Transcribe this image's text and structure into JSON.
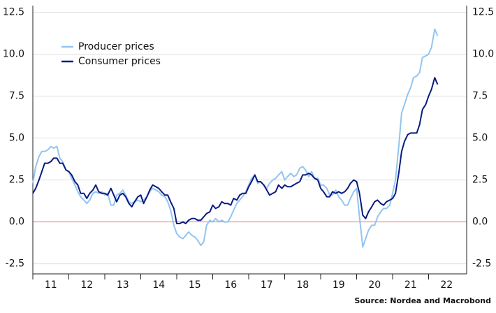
{
  "chart_data": {
    "type": "line",
    "source": "Source: Nordea and Macrobond",
    "x": [
      2011.0,
      2011.08,
      2011.17,
      2011.25,
      2011.33,
      2011.42,
      2011.5,
      2011.58,
      2011.67,
      2011.75,
      2011.83,
      2011.92,
      2012.0,
      2012.08,
      2012.17,
      2012.25,
      2012.33,
      2012.42,
      2012.5,
      2012.58,
      2012.67,
      2012.75,
      2012.83,
      2012.92,
      2013.0,
      2013.08,
      2013.17,
      2013.25,
      2013.33,
      2013.42,
      2013.5,
      2013.58,
      2013.67,
      2013.75,
      2013.83,
      2013.92,
      2014.0,
      2014.08,
      2014.17,
      2014.25,
      2014.33,
      2014.42,
      2014.5,
      2014.58,
      2014.67,
      2014.75,
      2014.83,
      2014.92,
      2015.0,
      2015.08,
      2015.17,
      2015.25,
      2015.33,
      2015.42,
      2015.5,
      2015.58,
      2015.67,
      2015.75,
      2015.83,
      2015.92,
      2016.0,
      2016.08,
      2016.17,
      2016.25,
      2016.33,
      2016.42,
      2016.5,
      2016.58,
      2016.67,
      2016.75,
      2016.83,
      2016.92,
      2017.0,
      2017.08,
      2017.17,
      2017.25,
      2017.33,
      2017.42,
      2017.5,
      2017.58,
      2017.67,
      2017.75,
      2017.83,
      2017.92,
      2018.0,
      2018.08,
      2018.17,
      2018.25,
      2018.33,
      2018.42,
      2018.5,
      2018.58,
      2018.67,
      2018.75,
      2018.83,
      2018.92,
      2019.0,
      2019.08,
      2019.17,
      2019.25,
      2019.33,
      2019.42,
      2019.5,
      2019.58,
      2019.67,
      2019.75,
      2019.83,
      2019.92,
      2020.0,
      2020.08,
      2020.17,
      2020.25,
      2020.33,
      2020.42,
      2020.5,
      2020.58,
      2020.67,
      2020.75,
      2020.83,
      2020.92,
      2021.0,
      2021.08,
      2021.17,
      2021.25,
      2021.33,
      2021.42,
      2021.5,
      2021.58,
      2021.67,
      2021.75,
      2021.83,
      2021.92,
      2022.0,
      2022.08,
      2022.17,
      2022.25
    ],
    "series": [
      {
        "name": "Producer prices",
        "color": "#92c5f0",
        "values": [
          2.3,
          3.3,
          3.9,
          4.2,
          4.2,
          4.3,
          4.5,
          4.4,
          4.5,
          3.8,
          3.6,
          3.1,
          3.0,
          2.6,
          2.2,
          1.8,
          1.5,
          1.3,
          1.1,
          1.3,
          1.7,
          1.8,
          1.7,
          1.8,
          1.6,
          1.7,
          1.0,
          1.0,
          1.6,
          1.7,
          1.9,
          1.6,
          1.2,
          1.1,
          1.2,
          1.3,
          1.2,
          1.3,
          1.5,
          1.8,
          2.0,
          1.9,
          1.8,
          1.6,
          1.5,
          1.2,
          0.7,
          -0.2,
          -0.7,
          -0.9,
          -1.0,
          -0.8,
          -0.6,
          -0.8,
          -0.9,
          -1.1,
          -1.4,
          -1.2,
          -0.2,
          0.1,
          0.0,
          0.2,
          0.0,
          0.1,
          0.0,
          0.0,
          0.3,
          0.7,
          1.1,
          1.3,
          1.5,
          1.8,
          2.2,
          2.6,
          2.8,
          2.3,
          2.4,
          2.2,
          2.0,
          2.3,
          2.5,
          2.6,
          2.8,
          3.0,
          2.5,
          2.7,
          2.9,
          2.7,
          2.8,
          3.2,
          3.3,
          3.1,
          2.7,
          3.0,
          2.6,
          2.6,
          2.2,
          2.2,
          2.0,
          1.6,
          1.6,
          1.9,
          1.5,
          1.3,
          1.0,
          1.0,
          1.4,
          1.8,
          2.0,
          0.3,
          -1.5,
          -1.0,
          -0.5,
          -0.2,
          -0.2,
          0.3,
          0.6,
          0.8,
          0.8,
          1.0,
          1.7,
          2.5,
          4.5,
          6.5,
          7.0,
          7.6,
          8.0,
          8.6,
          8.7,
          8.9,
          9.8,
          9.9,
          10.0,
          10.4,
          11.5,
          11.1
        ]
      },
      {
        "name": "Consumer prices",
        "color": "#0b1a80",
        "values": [
          1.7,
          2.0,
          2.5,
          3.0,
          3.5,
          3.5,
          3.6,
          3.8,
          3.8,
          3.5,
          3.5,
          3.1,
          3.0,
          2.8,
          2.4,
          2.2,
          1.7,
          1.7,
          1.4,
          1.7,
          1.9,
          2.2,
          1.8,
          1.7,
          1.7,
          1.6,
          2.0,
          1.6,
          1.2,
          1.6,
          1.7,
          1.5,
          1.1,
          0.9,
          1.2,
          1.5,
          1.6,
          1.1,
          1.5,
          1.9,
          2.2,
          2.1,
          2.0,
          1.8,
          1.6,
          1.6,
          1.2,
          0.8,
          -0.1,
          -0.1,
          0.0,
          -0.1,
          0.1,
          0.2,
          0.2,
          0.1,
          0.1,
          0.3,
          0.5,
          0.6,
          1.0,
          0.8,
          0.9,
          1.2,
          1.1,
          1.1,
          1.0,
          1.4,
          1.3,
          1.6,
          1.7,
          1.7,
          2.1,
          2.4,
          2.8,
          2.4,
          2.4,
          2.2,
          1.9,
          1.6,
          1.7,
          1.8,
          2.2,
          2.0,
          2.2,
          2.1,
          2.1,
          2.2,
          2.3,
          2.4,
          2.8,
          2.8,
          2.9,
          2.8,
          2.6,
          2.5,
          2.0,
          1.8,
          1.5,
          1.5,
          1.8,
          1.7,
          1.8,
          1.7,
          1.8,
          2.0,
          2.3,
          2.5,
          2.4,
          1.7,
          0.4,
          0.2,
          0.6,
          0.9,
          1.2,
          1.3,
          1.1,
          1.0,
          1.2,
          1.3,
          1.4,
          1.7,
          2.9,
          4.2,
          4.8,
          5.2,
          5.3,
          5.3,
          5.3,
          5.8,
          6.7,
          7.0,
          7.5,
          7.9,
          8.6,
          8.2
        ]
      }
    ],
    "xlim": [
      2011,
      2023
    ],
    "xticks": [
      {
        "value": 2011.5,
        "label": "11"
      },
      {
        "value": 2012.5,
        "label": "12"
      },
      {
        "value": 2013.5,
        "label": "13"
      },
      {
        "value": 2014.5,
        "label": "14"
      },
      {
        "value": 2015.5,
        "label": "15"
      },
      {
        "value": 2016.5,
        "label": "16"
      },
      {
        "value": 2017.5,
        "label": "17"
      },
      {
        "value": 2018.5,
        "label": "18"
      },
      {
        "value": 2019.5,
        "label": "19"
      },
      {
        "value": 2020.5,
        "label": "20"
      },
      {
        "value": 2021.5,
        "label": "21"
      },
      {
        "value": 2022.5,
        "label": "22"
      }
    ],
    "ylim": [
      -3.1,
      12.9
    ],
    "yticks": [
      -2.5,
      {
        "value": 0,
        "label": "0.0"
      },
      2.5,
      {
        "value": 5,
        "label": "5.0"
      },
      7.5,
      {
        "value": 10,
        "label": "10.0"
      },
      12.5
    ],
    "y2lim": [
      -3.1,
      12.9
    ],
    "y2ticks": [
      -2.5,
      {
        "value": 0,
        "label": "0.0"
      },
      2.5,
      {
        "value": 5,
        "label": "5.0"
      },
      7.5,
      {
        "value": 10,
        "label": "10.0"
      },
      12.5
    ],
    "grid": true,
    "zero_line_color": "#e8837a",
    "legend": "upper left"
  }
}
